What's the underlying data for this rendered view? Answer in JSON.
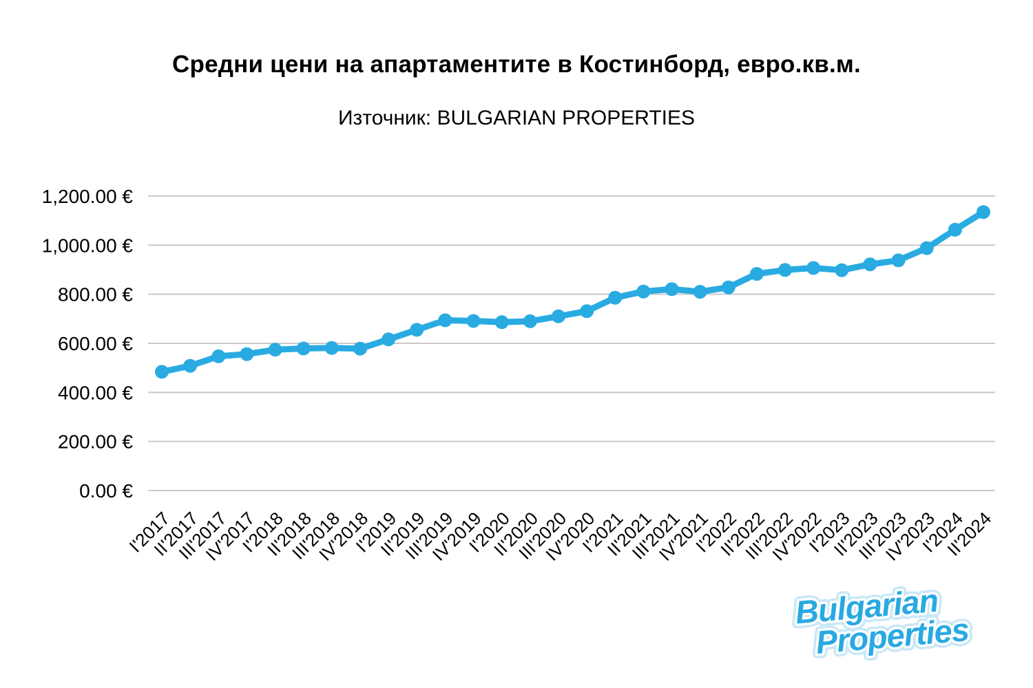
{
  "title": "Средни цени на апартаментите в Костинборд, евро.кв.м.",
  "subtitle": "Източник: BULGARIAN PROPERTIES",
  "logo": {
    "line1": "Bulgarian",
    "line2": "Properties"
  },
  "colors": {
    "line": "#29ABE2",
    "grid": "#C9C9C9",
    "text": "#000000",
    "logo_blue": "#29A9E1",
    "logo_halo": "#C9E8F7",
    "logo_stroke": "#FFFFFF"
  },
  "chart_data": {
    "type": "line",
    "title": "Средни цени на апартаментите в Костинборд, евро.кв.м.",
    "source": "BULGARIAN PROPERTIES",
    "xlabel": "",
    "ylabel": "",
    "ylim": [
      0,
      1200
    ],
    "grid": true,
    "legend": false,
    "marker": "circle",
    "y_ticks": [
      {
        "value": 0,
        "label": "0.00 €"
      },
      {
        "value": 200,
        "label": "200.00 €"
      },
      {
        "value": 400,
        "label": "400.00 €"
      },
      {
        "value": 600,
        "label": "600.00 €"
      },
      {
        "value": 800,
        "label": "800.00 €"
      },
      {
        "value": 1000,
        "label": "1,000.00 €"
      },
      {
        "value": 1200,
        "label": "1,200.00 €"
      }
    ],
    "categories": [
      "I'2017",
      "II'2017",
      "III'2017",
      "IV'2017",
      "I'2018",
      "II'2018",
      "III'2018",
      "IV'2018",
      "I'2019",
      "II'2019",
      "III'2019",
      "IV'2019",
      "I'2020",
      "II'2020",
      "III'2020",
      "IV'2020",
      "I'2021",
      "II'2021",
      "III'2021",
      "IV'2021",
      "I'2022",
      "II'2022",
      "III'2022",
      "IV'2022",
      "I'2023",
      "II'2023",
      "III'2023",
      "IV'2023",
      "I'2024",
      "II'2024"
    ],
    "values": [
      484,
      508,
      547,
      556,
      574,
      579,
      581,
      578,
      616,
      655,
      694,
      691,
      686,
      690,
      710,
      731,
      786,
      811,
      821,
      810,
      828,
      883,
      899,
      907,
      898,
      922,
      938,
      988,
      1063,
      1135
    ]
  }
}
